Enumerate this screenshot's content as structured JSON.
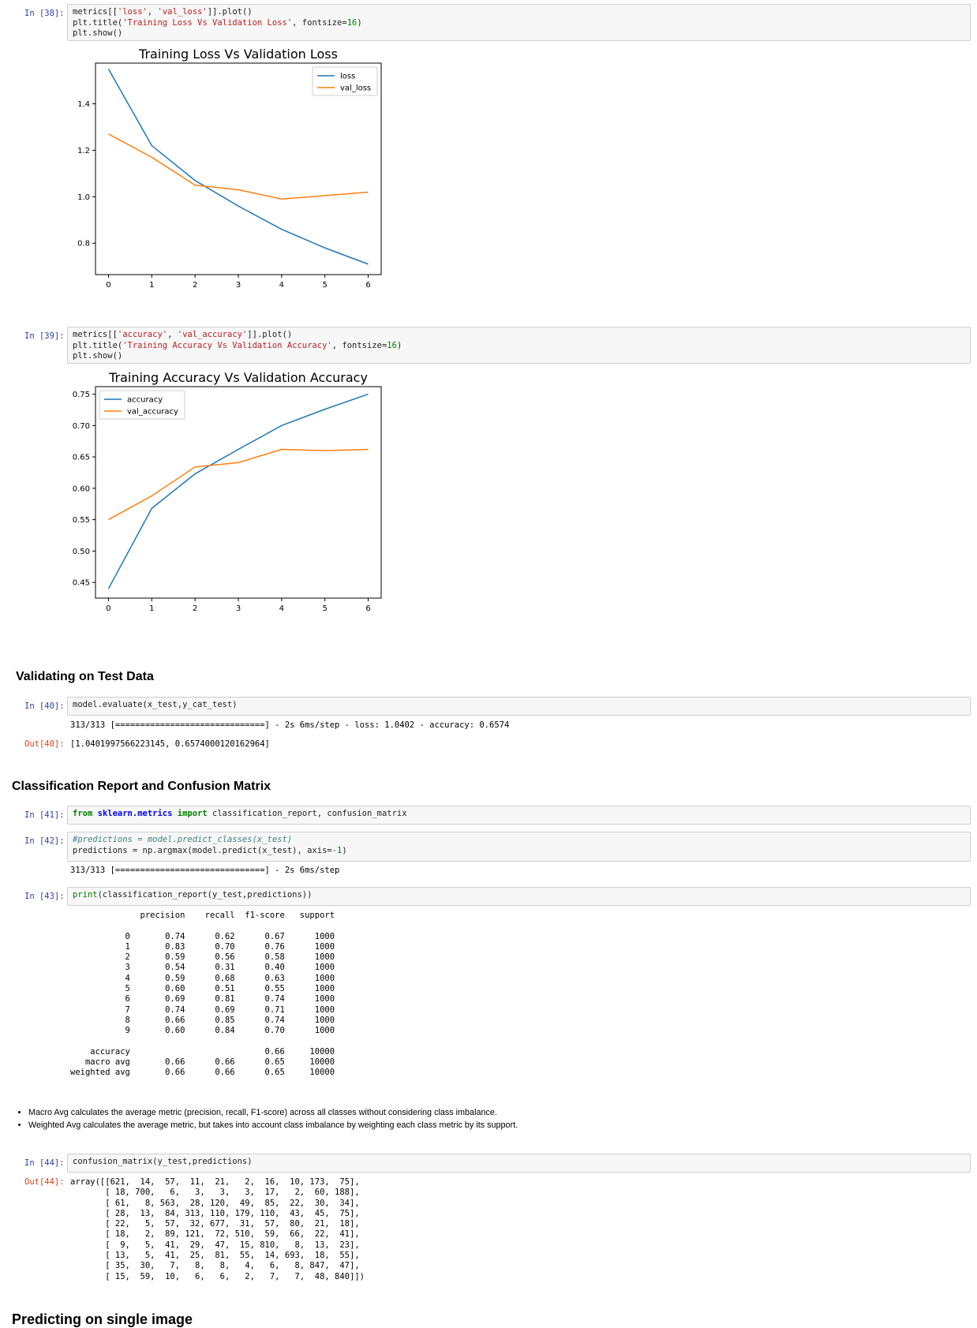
{
  "cells": {
    "c38": {
      "prompt": "In [38]:",
      "code": {
        "l1_a": "metrics[[",
        "l1_s1": "'loss'",
        "l1_b": ", ",
        "l1_s2": "'val_loss'",
        "l1_c": "]].plot()",
        "l2_a": "plt.title(",
        "l2_s": "'Training Loss Vs Validation Loss'",
        "l2_b": ", fontsize=",
        "l2_n": "16",
        "l2_c": ")",
        "l3": "plt.show()"
      }
    },
    "c39": {
      "prompt": "In [39]:",
      "code": {
        "l1_a": "metrics[[",
        "l1_s1": "'accuracy'",
        "l1_b": ", ",
        "l1_s2": "'val_accuracy'",
        "l1_c": "]].plot()",
        "l2_a": "plt.title(",
        "l2_s": "'Training Accuracy Vs Validation Accuracy'",
        "l2_b": ", fontsize=",
        "l2_n": "16",
        "l2_c": ")",
        "l3": "plt.show()"
      }
    },
    "c40": {
      "prompt": "In [40]:",
      "code": "model.evaluate(x_test,y_cat_test)",
      "stdout": "313/313 [==============================] - 2s 6ms/step - loss: 1.0402 - accuracy: 0.6574",
      "out_prompt": "Out[40]:",
      "out": "[1.0401997566223145, 0.6574000120162964]"
    },
    "c41": {
      "prompt": "In [41]:",
      "code": {
        "kw1": "from",
        "mod": "sklearn.metrics",
        "kw2": "import",
        "rest": " classification_report, confusion_matrix"
      }
    },
    "c42": {
      "prompt": "In [42]:",
      "comment": "#predictions = model.predict_classes(x_test)",
      "code_a": "predictions = np.argmax(model.predict(x_test), axis=",
      "code_n": "-1",
      "code_b": ")",
      "stdout": "313/313 [==============================] - 2s 6ms/step"
    },
    "c43": {
      "prompt": "In [43]:",
      "code": {
        "fn": "print",
        "rest": "(classification_report(y_test,predictions))"
      },
      "report": "              precision    recall  f1-score   support\n\n           0       0.74      0.62      0.67      1000\n           1       0.83      0.70      0.76      1000\n           2       0.59      0.56      0.58      1000\n           3       0.54      0.31      0.40      1000\n           4       0.59      0.68      0.63      1000\n           5       0.60      0.51      0.55      1000\n           6       0.69      0.81      0.74      1000\n           7       0.74      0.69      0.71      1000\n           8       0.66      0.85      0.74      1000\n           9       0.60      0.84      0.70      1000\n\n    accuracy                           0.66     10000\n   macro avg       0.66      0.66      0.65     10000\nweighted avg       0.66      0.66      0.65     10000"
    },
    "c44": {
      "prompt": "In [44]:",
      "code": "confusion_matrix(y_test,predictions)",
      "out_prompt": "Out[44]:",
      "out": "array([[621,  14,  57,  11,  21,   2,  16,  10, 173,  75],\n       [ 18, 700,   6,   3,   3,   3,  17,   2,  60, 188],\n       [ 61,   8, 563,  28, 120,  49,  85,  22,  30,  34],\n       [ 28,  13,  84, 313, 110, 179, 110,  43,  45,  75],\n       [ 22,   5,  57,  32, 677,  31,  57,  80,  21,  18],\n       [ 18,   2,  89, 121,  72, 510,  59,  66,  22,  41],\n       [  9,   5,  41,  29,  47,  15, 810,   8,  13,  23],\n       [ 13,   5,  41,  25,  81,  55,  14, 693,  18,  55],\n       [ 35,  30,   7,   8,   8,   4,   6,   8, 847,  47],\n       [ 15,  59,  10,   6,   6,   2,   7,   7,  48, 840]])"
    }
  },
  "headings": {
    "validating": "Validating on Test Data",
    "classification": "Classification Report and Confusion Matrix",
    "predicting": "Predicting on single image"
  },
  "notes": [
    "Macro Avg calculates the average metric (precision, recall, F1-score) across all classes without considering class imbalance.",
    "Weighted Avg calculates the average metric, but takes into account class imbalance by weighting each class metric by its support."
  ],
  "colors": {
    "series1": "#1f77b4",
    "series2": "#ff7f0e"
  },
  "chart_data": [
    {
      "type": "line",
      "title": "Training Loss Vs Validation Loss",
      "xlabel": "",
      "ylabel": "",
      "x": [
        0,
        1,
        2,
        3,
        4,
        5,
        6
      ],
      "xlim": [
        -0.3,
        6.3
      ],
      "ylim": [
        0.665,
        1.575
      ],
      "xticks": [
        0,
        1,
        2,
        3,
        4,
        5,
        6
      ],
      "yticks": [
        0.8,
        1.0,
        1.2,
        1.4
      ],
      "ytick_labels": [
        "0.8",
        "1.0",
        "1.2",
        "1.4"
      ],
      "legend": "upper right",
      "series": [
        {
          "name": "loss",
          "values": [
            1.55,
            1.22,
            1.07,
            0.96,
            0.86,
            0.78,
            0.71
          ]
        },
        {
          "name": "val_loss",
          "values": [
            1.27,
            1.17,
            1.05,
            1.03,
            0.99,
            1.005,
            1.02
          ]
        }
      ]
    },
    {
      "type": "line",
      "title": "Training Accuracy Vs Validation Accuracy",
      "xlabel": "",
      "ylabel": "",
      "x": [
        0,
        1,
        2,
        3,
        4,
        5,
        6
      ],
      "xlim": [
        -0.3,
        6.3
      ],
      "ylim": [
        0.425,
        0.762
      ],
      "xticks": [
        0,
        1,
        2,
        3,
        4,
        5,
        6
      ],
      "yticks": [
        0.45,
        0.5,
        0.55,
        0.6,
        0.65,
        0.7,
        0.75
      ],
      "ytick_labels": [
        "0.45",
        "0.50",
        "0.55",
        "0.60",
        "0.65",
        "0.70",
        "0.75"
      ],
      "legend": "upper left",
      "series": [
        {
          "name": "accuracy",
          "values": [
            0.44,
            0.568,
            0.623,
            0.662,
            0.7,
            0.726,
            0.75
          ]
        },
        {
          "name": "val_accuracy",
          "values": [
            0.55,
            0.588,
            0.634,
            0.641,
            0.662,
            0.66,
            0.662
          ]
        }
      ]
    }
  ]
}
